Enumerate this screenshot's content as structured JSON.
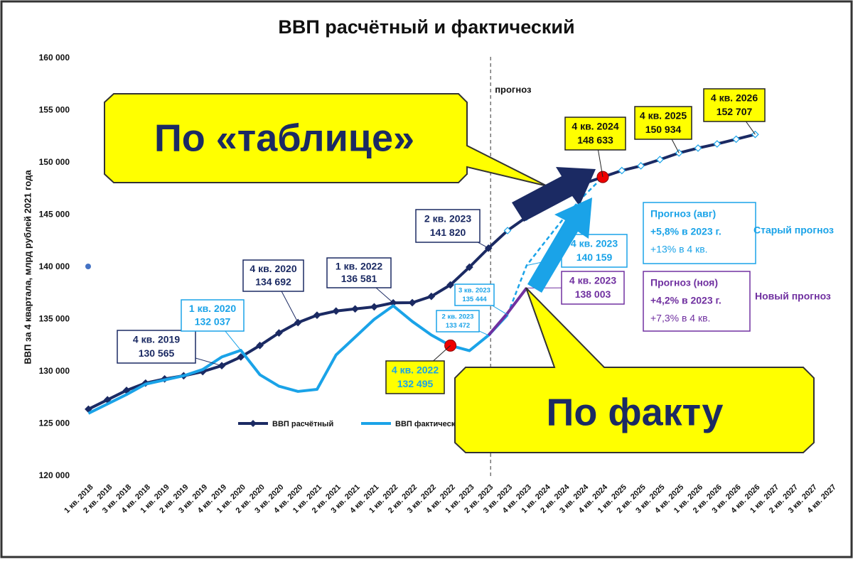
{
  "chart_data": {
    "type": "line",
    "title": "ВВП расчётный и фактический",
    "y_label": "ВВП за 4 квартала,  млрд рублей 2021 года",
    "categories": [
      "1 кв. 2018",
      "2 кв. 2018",
      "3 кв. 2018",
      "4 кв. 2018",
      "1 кв. 2019",
      "2 кв. 2019",
      "3 кв. 2019",
      "4 кв. 2019",
      "1 кв. 2020",
      "2 кв. 2020",
      "3 кв. 2020",
      "4 кв. 2020",
      "1 кв. 2021",
      "2 кв. 2021",
      "3 кв. 2021",
      "4 кв. 2021",
      "1 кв. 2022",
      "2 кв. 2022",
      "3 кв. 2022",
      "4 кв. 2022",
      "1 кв. 2023",
      "2 кв. 2023",
      "3 кв. 2023",
      "4 кв. 2023",
      "1 кв. 2024",
      "2 кв. 2024",
      "3 кв. 2024",
      "4 кв. 2024",
      "1 кв. 2025",
      "2 кв. 2025",
      "3 кв. 2025",
      "4 кв. 2025",
      "1 кв. 2026",
      "2 кв. 2026",
      "3 кв. 2026",
      "4 кв. 2026",
      "1 кв. 2027",
      "2 кв. 2027",
      "3 кв. 2027",
      "4 кв. 2027"
    ],
    "ylim": [
      120000,
      160000
    ],
    "yticks": [
      {
        "value": 120000,
        "label": "120 000"
      },
      {
        "value": 125000,
        "label": "125 000"
      },
      {
        "value": 130000,
        "label": "130 000"
      },
      {
        "value": 135000,
        "label": "135 000"
      },
      {
        "value": 140000,
        "label": "140 000"
      },
      {
        "value": 145000,
        "label": "145 000"
      },
      {
        "value": 150000,
        "label": "150 000"
      },
      {
        "value": 155000,
        "label": "155 000"
      },
      {
        "value": 160000,
        "label": "160 000"
      }
    ],
    "grid": false,
    "forecast_label": "прогноз",
    "series": [
      {
        "name": "ВВП расчётный",
        "color": "#1b2a63",
        "marker": "diamond",
        "legend": true,
        "values": [
          126400,
          127300,
          128200,
          128900,
          129300,
          129600,
          130000,
          130565,
          131400,
          132500,
          133700,
          134692,
          135400,
          135800,
          136000,
          136200,
          136581,
          136600,
          137200,
          138300,
          140000,
          141820,
          143500,
          144793,
          146300,
          147300,
          148000,
          148633,
          149250,
          149700,
          150300,
          150934,
          151400,
          151800,
          152250,
          152707,
          null,
          null,
          null,
          null
        ],
        "value_labels": [
          null,
          null,
          null,
          null,
          null,
          null,
          null,
          "130 565",
          null,
          null,
          null,
          "134 692",
          null,
          null,
          null,
          null,
          "136 581",
          null,
          null,
          null,
          null,
          "141 820",
          null,
          null,
          null,
          null,
          null,
          "148 633",
          null,
          null,
          null,
          "150 934",
          null,
          null,
          null,
          "152 707",
          null,
          null,
          null,
          null
        ]
      },
      {
        "name": "ВВП фактический",
        "color": "#1aa3e8",
        "legend": true,
        "values": [
          126000,
          126900,
          127800,
          128800,
          129200,
          129600,
          130200,
          131400,
          132037,
          129700,
          128600,
          128100,
          128300,
          131600,
          133300,
          135000,
          136300,
          134800,
          133500,
          132495,
          132000,
          133472,
          135444,
          null,
          null,
          null,
          null,
          null,
          null,
          null,
          null,
          null,
          null,
          null,
          null,
          null,
          null,
          null,
          null,
          null
        ],
        "value_labels": [
          null,
          null,
          null,
          null,
          null,
          null,
          null,
          null,
          "132 037",
          null,
          null,
          null,
          null,
          null,
          null,
          null,
          null,
          null,
          null,
          "132 495",
          null,
          "133 472",
          "135 444",
          null,
          null,
          null,
          null,
          null,
          null,
          null,
          null,
          null,
          null,
          null,
          null,
          null,
          null,
          null,
          null,
          null
        ]
      },
      {
        "name": "Старый прогноз",
        "color": "#1aa3e8",
        "dash": true,
        "values": [
          null,
          null,
          null,
          null,
          null,
          null,
          null,
          null,
          null,
          null,
          null,
          null,
          null,
          null,
          null,
          null,
          null,
          null,
          null,
          null,
          null,
          null,
          135444,
          140159,
          142500,
          144800,
          146800,
          148633,
          null,
          null,
          null,
          null,
          null,
          null,
          null,
          null,
          null,
          null,
          null,
          null
        ],
        "value_labels": [
          null,
          null,
          null,
          null,
          null,
          null,
          null,
          null,
          null,
          null,
          null,
          null,
          null,
          null,
          null,
          null,
          null,
          null,
          null,
          null,
          null,
          null,
          null,
          "140 159",
          null,
          null,
          null,
          null,
          null,
          null,
          null,
          null,
          null,
          null,
          null,
          null,
          null,
          null,
          null,
          null
        ],
        "note": [
          "Прогноз (авг)",
          "+5,8% в 2023 г.",
          "+13% в 4 кв."
        ]
      },
      {
        "name": "Новый прогноз",
        "color": "#7030a0",
        "values": [
          null,
          null,
          null,
          null,
          null,
          null,
          null,
          null,
          null,
          null,
          null,
          null,
          null,
          null,
          null,
          null,
          null,
          null,
          null,
          null,
          null,
          133472,
          135600,
          138003,
          null,
          null,
          null,
          null,
          null,
          null,
          null,
          null,
          null,
          null,
          null,
          null,
          null,
          null,
          null,
          null
        ],
        "value_labels": [
          null,
          null,
          null,
          null,
          null,
          null,
          null,
          null,
          null,
          null,
          null,
          null,
          null,
          null,
          null,
          null,
          null,
          null,
          null,
          null,
          null,
          null,
          null,
          "138 003",
          null,
          null,
          null,
          null,
          null,
          null,
          null,
          null,
          null,
          null,
          null,
          null,
          null,
          null,
          null,
          null
        ],
        "note": [
          "Прогноз (ноя)",
          "+4,2% в 2023 г.",
          "+7,3% в 4 кв."
        ]
      }
    ],
    "overlays": [
      "По «таблице»",
      "По факту"
    ]
  }
}
